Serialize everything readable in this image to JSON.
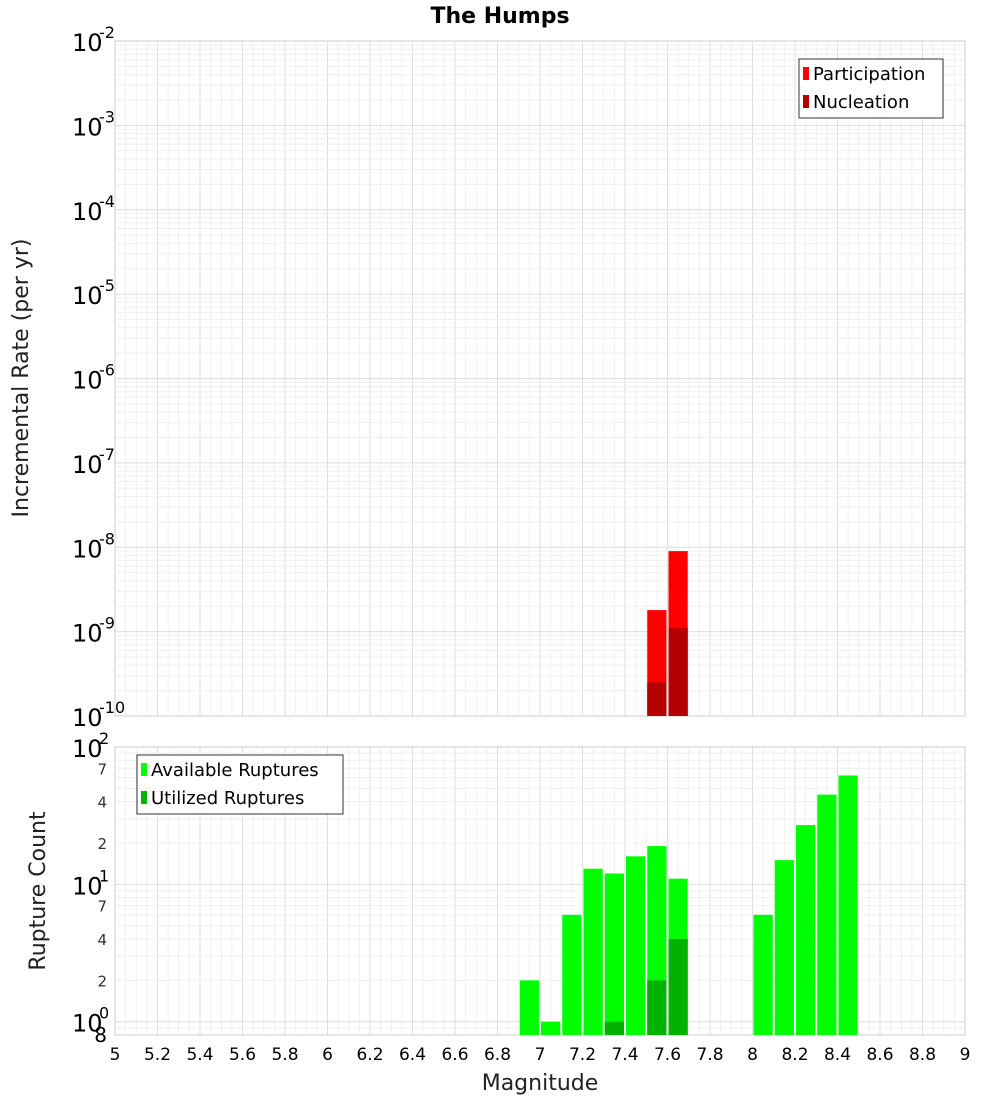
{
  "chart_data": [
    {
      "type": "bar",
      "title": "The Humps",
      "xlabel": "",
      "ylabel": "Incremental Rate (per yr)",
      "yscale": "log",
      "ylim": [
        1e-10,
        0.01
      ],
      "xlim": [
        5,
        9
      ],
      "grid": true,
      "legend_position": "top-right",
      "y_ticks": [
        {
          "base": "10",
          "exp": "-10"
        },
        {
          "base": "10",
          "exp": "-9"
        },
        {
          "base": "10",
          "exp": "-8"
        },
        {
          "base": "10",
          "exp": "-7"
        },
        {
          "base": "10",
          "exp": "-6"
        },
        {
          "base": "10",
          "exp": "-5"
        },
        {
          "base": "10",
          "exp": "-4"
        },
        {
          "base": "10",
          "exp": "-3"
        },
        {
          "base": "10",
          "exp": "-2"
        }
      ],
      "series": [
        {
          "name": "Participation",
          "color": "#ff0000",
          "x": [
            7.55,
            7.65
          ],
          "values": [
            1.8e-09,
            9e-09
          ]
        },
        {
          "name": "Nucleation",
          "color": "#b30000",
          "x": [
            7.55,
            7.65
          ],
          "values": [
            2.5e-10,
            1.1e-09
          ]
        }
      ]
    },
    {
      "type": "bar",
      "title": "",
      "xlabel": "Magnitude",
      "ylabel": "Rupture Count",
      "yscale": "log",
      "ylim": [
        0.8,
        100
      ],
      "xlim": [
        5,
        9
      ],
      "grid": true,
      "legend_position": "top-left",
      "x_ticks": [
        "5",
        "5.2",
        "5.4",
        "5.6",
        "5.8",
        "6",
        "6.2",
        "6.4",
        "6.6",
        "6.8",
        "7",
        "7.2",
        "7.4",
        "7.6",
        "7.8",
        "8",
        "8.2",
        "8.4",
        "8.6",
        "8.8",
        "9"
      ],
      "y_ticks": [
        {
          "base": "10",
          "exp": "0"
        },
        {
          "base": "10",
          "exp": "1"
        },
        {
          "base": "10",
          "exp": "2"
        }
      ],
      "y_minor_labels": [
        "8",
        "2",
        "4",
        "7",
        "2",
        "4",
        "7"
      ],
      "series": [
        {
          "name": "Available Ruptures",
          "color": "#00ff00",
          "x": [
            6.95,
            7.05,
            7.15,
            7.25,
            7.35,
            7.45,
            7.55,
            7.65,
            8.05,
            8.15,
            8.25,
            8.35,
            8.45
          ],
          "values": [
            2,
            1,
            6,
            13,
            12,
            16,
            19,
            11,
            6,
            15,
            27,
            45,
            62
          ]
        },
        {
          "name": "Utilized Ruptures",
          "color": "#00b300",
          "x": [
            7.35,
            7.55,
            7.65
          ],
          "values": [
            1,
            2,
            4
          ]
        }
      ]
    }
  ]
}
